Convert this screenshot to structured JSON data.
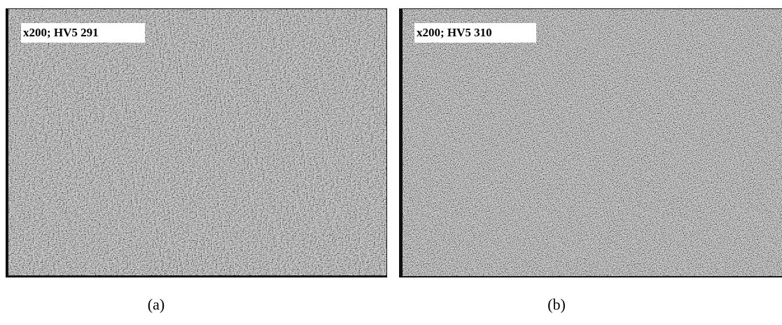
{
  "panels": [
    {
      "label": "x200; HV5 291",
      "caption": "(a)"
    },
    {
      "label": "x200; HV5 310",
      "caption": "(b)"
    }
  ]
}
